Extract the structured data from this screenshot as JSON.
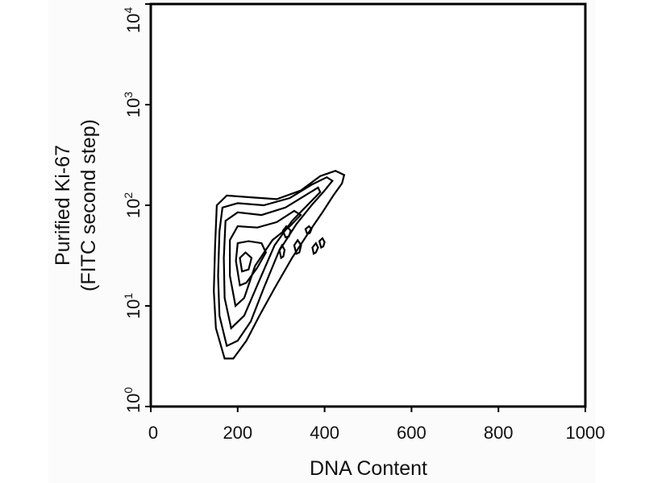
{
  "chart_data": {
    "type": "contour",
    "xlabel": "DNA Content",
    "ylabel_line1": "Purified Ki-67",
    "ylabel_line2": "(FITC second step)",
    "xlim": [
      0,
      1000
    ],
    "ylim": [
      1,
      10000
    ],
    "y_scale": "log",
    "x_ticks": [
      {
        "value": 0,
        "label": "0"
      },
      {
        "value": 200,
        "label": "200"
      },
      {
        "value": 400,
        "label": "400"
      },
      {
        "value": 600,
        "label": "600"
      },
      {
        "value": 800,
        "label": "800"
      },
      {
        "value": 1000,
        "label": "1000"
      }
    ],
    "y_ticks": [
      {
        "value": 1,
        "base": "10",
        "exp": "0"
      },
      {
        "value": 10,
        "base": "10",
        "exp": "1"
      },
      {
        "value": 100,
        "base": "10",
        "exp": "2"
      },
      {
        "value": 1000,
        "base": "10",
        "exp": "3"
      },
      {
        "value": 10000,
        "base": "10",
        "exp": "4"
      }
    ],
    "grid": false,
    "legend": "none",
    "colors": {
      "contour": "#000000",
      "frame": "#000000",
      "background": "#ffffff"
    },
    "contours": [
      {
        "level": 1,
        "points": [
          [
            170,
            3.0
          ],
          [
            150,
            6
          ],
          [
            145,
            14
          ],
          [
            148,
            40
          ],
          [
            152,
            100
          ],
          [
            175,
            125
          ],
          [
            230,
            120
          ],
          [
            290,
            115
          ],
          [
            345,
            140
          ],
          [
            390,
            195
          ],
          [
            425,
            220
          ],
          [
            445,
            200
          ],
          [
            440,
            165
          ],
          [
            420,
            125
          ],
          [
            395,
            85
          ],
          [
            365,
            55
          ],
          [
            325,
            30
          ],
          [
            285,
            15
          ],
          [
            250,
            8
          ],
          [
            220,
            4.5
          ],
          [
            190,
            3.0
          ],
          [
            170,
            3.0
          ]
        ]
      },
      {
        "level": 2,
        "points": [
          [
            175,
            4.0
          ],
          [
            158,
            8
          ],
          [
            155,
            20
          ],
          [
            158,
            55
          ],
          [
            165,
            95
          ],
          [
            200,
            105
          ],
          [
            260,
            100
          ],
          [
            320,
            118
          ],
          [
            370,
            160
          ],
          [
            405,
            190
          ],
          [
            418,
            175
          ],
          [
            400,
            140
          ],
          [
            370,
            100
          ],
          [
            335,
            65
          ],
          [
            295,
            35
          ],
          [
            260,
            15
          ],
          [
            230,
            7
          ],
          [
            200,
            4.5
          ],
          [
            175,
            4.0
          ]
        ]
      },
      {
        "level": 3,
        "points": [
          [
            185,
            6
          ],
          [
            170,
            12
          ],
          [
            168,
            30
          ],
          [
            172,
            70
          ],
          [
            200,
            85
          ],
          [
            255,
            80
          ],
          [
            310,
            95
          ],
          [
            355,
            125
          ],
          [
            385,
            150
          ],
          [
            390,
            135
          ],
          [
            365,
            105
          ],
          [
            325,
            70
          ],
          [
            285,
            40
          ],
          [
            250,
            18
          ],
          [
            215,
            8
          ],
          [
            185,
            6
          ]
        ]
      },
      {
        "level": 4,
        "points": [
          [
            195,
            10
          ],
          [
            182,
            20
          ],
          [
            182,
            45
          ],
          [
            200,
            62
          ],
          [
            245,
            60
          ],
          [
            290,
            68
          ],
          [
            330,
            88
          ],
          [
            345,
            80
          ],
          [
            320,
            62
          ],
          [
            280,
            45
          ],
          [
            240,
            25
          ],
          [
            215,
            12
          ],
          [
            195,
            10
          ]
        ]
      },
      {
        "level": 5,
        "points": [
          [
            205,
            16
          ],
          [
            196,
            28
          ],
          [
            200,
            42
          ],
          [
            225,
            44
          ],
          [
            255,
            42
          ],
          [
            265,
            34
          ],
          [
            245,
            24
          ],
          [
            220,
            17
          ],
          [
            205,
            16
          ]
        ]
      },
      {
        "level": 6,
        "points": [
          [
            210,
            22
          ],
          [
            205,
            30
          ],
          [
            218,
            34
          ],
          [
            232,
            30
          ],
          [
            225,
            23
          ],
          [
            210,
            22
          ]
        ]
      },
      {
        "level": 7,
        "points": [
          [
            310,
            48
          ],
          [
            304,
            56
          ],
          [
            312,
            62
          ],
          [
            322,
            56
          ],
          [
            318,
            49
          ],
          [
            310,
            48
          ]
        ]
      },
      {
        "level": 7,
        "points": [
          [
            335,
            33
          ],
          [
            330,
            40
          ],
          [
            338,
            45
          ],
          [
            346,
            40
          ],
          [
            342,
            34
          ],
          [
            335,
            33
          ]
        ]
      },
      {
        "level": 7,
        "points": [
          [
            360,
            52
          ],
          [
            356,
            58
          ],
          [
            364,
            62
          ],
          [
            370,
            58
          ],
          [
            366,
            53
          ],
          [
            360,
            52
          ]
        ]
      },
      {
        "level": 7,
        "points": [
          [
            375,
            33
          ],
          [
            372,
            38
          ],
          [
            380,
            42
          ],
          [
            385,
            38
          ],
          [
            380,
            34
          ],
          [
            375,
            33
          ]
        ]
      },
      {
        "level": 7,
        "points": [
          [
            392,
            38
          ],
          [
            388,
            44
          ],
          [
            395,
            47
          ],
          [
            400,
            43
          ],
          [
            397,
            39
          ],
          [
            392,
            38
          ]
        ]
      },
      {
        "level": 7,
        "points": [
          [
            300,
            30
          ],
          [
            296,
            36
          ],
          [
            302,
            40
          ],
          [
            308,
            36
          ],
          [
            305,
            31
          ],
          [
            300,
            30
          ]
        ]
      }
    ]
  }
}
